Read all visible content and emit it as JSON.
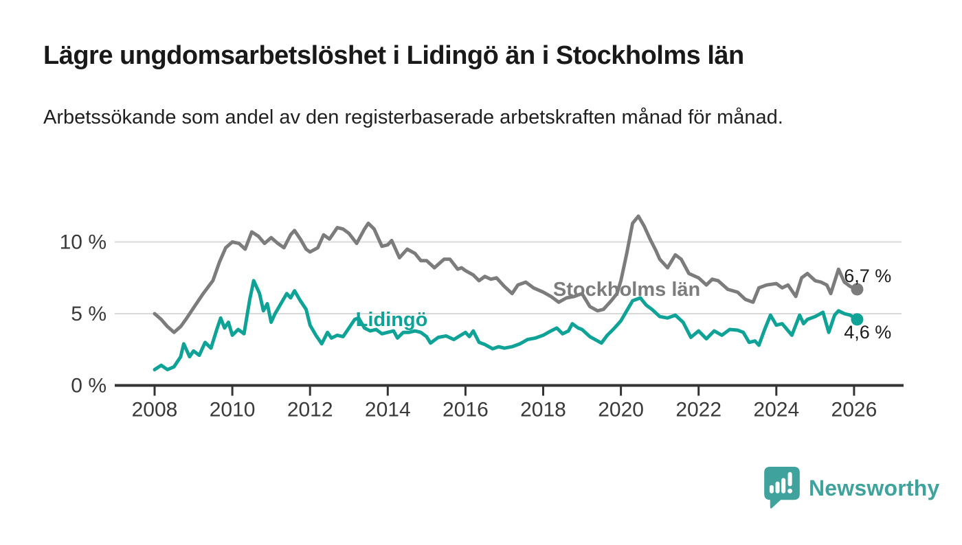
{
  "header": {
    "title": "Lägre ungdomsarbetslöshet i Lidingö än i Stockholms län",
    "subtitle": "Arbetssökande som andel av den registerbaserade arbetskraften månad för månad."
  },
  "footer": {
    "brand": "Newsworthy",
    "brand_color": "#3FA29C"
  },
  "colors": {
    "axis": "#333333",
    "gridline": "#d9d9d9",
    "tick_label": "#3a3a3a",
    "value_label": "#1b1b1b",
    "background": "#ffffff"
  },
  "chart_data": {
    "type": "line",
    "title": "Lägre ungdomsarbetslöshet i Lidingö än i Stockholms län",
    "subtitle": "Arbetssökande som andel av den registerbaserade arbetskraften månad för månad.",
    "xlabel": "",
    "ylabel": "",
    "unit": "%",
    "grid": "horizontal",
    "legend_position": "inline-labels",
    "xlim": [
      2007.0,
      2027.2
    ],
    "ylim": [
      0,
      12
    ],
    "y_ticks": [
      {
        "value": 0,
        "label": "0 %"
      },
      {
        "value": 5,
        "label": "5 %"
      },
      {
        "value": 10,
        "label": "10 %"
      }
    ],
    "x_ticks": [
      2008,
      2010,
      2012,
      2014,
      2016,
      2018,
      2020,
      2022,
      2024,
      2026
    ],
    "series": [
      {
        "name": "Stockholms län",
        "color": "#7C7C7C",
        "end_value_text": "6,7 %",
        "label": {
          "text": "Stockholms län",
          "x": 2020.15,
          "y": 6.72,
          "anchor": "middle"
        },
        "end_label": {
          "text": "6,7 %",
          "x": 2025.74,
          "y": 7.68,
          "anchor": "start"
        },
        "points": [
          [
            2008.0,
            5.0
          ],
          [
            2008.17,
            4.6
          ],
          [
            2008.33,
            4.1
          ],
          [
            2008.5,
            3.7
          ],
          [
            2008.67,
            4.1
          ],
          [
            2008.83,
            4.7
          ],
          [
            2009.0,
            5.4
          ],
          [
            2009.25,
            6.4
          ],
          [
            2009.5,
            7.3
          ],
          [
            2009.67,
            8.6
          ],
          [
            2009.83,
            9.6
          ],
          [
            2010.0,
            10.0
          ],
          [
            2010.17,
            9.9
          ],
          [
            2010.33,
            9.5
          ],
          [
            2010.5,
            10.7
          ],
          [
            2010.67,
            10.4
          ],
          [
            2010.83,
            9.9
          ],
          [
            2011.0,
            10.3
          ],
          [
            2011.17,
            9.9
          ],
          [
            2011.33,
            9.6
          ],
          [
            2011.5,
            10.5
          ],
          [
            2011.6,
            10.8
          ],
          [
            2011.75,
            10.2
          ],
          [
            2011.9,
            9.5
          ],
          [
            2012.0,
            9.3
          ],
          [
            2012.2,
            9.6
          ],
          [
            2012.35,
            10.5
          ],
          [
            2012.5,
            10.2
          ],
          [
            2012.7,
            11.0
          ],
          [
            2012.85,
            10.9
          ],
          [
            2013.0,
            10.6
          ],
          [
            2013.2,
            9.9
          ],
          [
            2013.4,
            10.9
          ],
          [
            2013.5,
            11.3
          ],
          [
            2013.65,
            10.9
          ],
          [
            2013.85,
            9.7
          ],
          [
            2014.0,
            9.8
          ],
          [
            2014.1,
            10.1
          ],
          [
            2014.3,
            8.9
          ],
          [
            2014.5,
            9.5
          ],
          [
            2014.7,
            9.2
          ],
          [
            2014.85,
            8.7
          ],
          [
            2015.0,
            8.7
          ],
          [
            2015.2,
            8.2
          ],
          [
            2015.45,
            8.8
          ],
          [
            2015.6,
            8.8
          ],
          [
            2015.8,
            8.1
          ],
          [
            2015.9,
            8.2
          ],
          [
            2016.0,
            8.0
          ],
          [
            2016.2,
            7.7
          ],
          [
            2016.35,
            7.3
          ],
          [
            2016.5,
            7.6
          ],
          [
            2016.65,
            7.4
          ],
          [
            2016.8,
            7.5
          ],
          [
            2017.0,
            6.9
          ],
          [
            2017.2,
            6.4
          ],
          [
            2017.35,
            7.0
          ],
          [
            2017.55,
            7.2
          ],
          [
            2017.75,
            6.8
          ],
          [
            2018.0,
            6.5
          ],
          [
            2018.2,
            6.2
          ],
          [
            2018.4,
            5.8
          ],
          [
            2018.6,
            6.1
          ],
          [
            2018.8,
            6.2
          ],
          [
            2019.0,
            6.4
          ],
          [
            2019.2,
            5.5
          ],
          [
            2019.4,
            5.2
          ],
          [
            2019.55,
            5.3
          ],
          [
            2019.75,
            5.9
          ],
          [
            2019.9,
            6.4
          ],
          [
            2020.0,
            7.3
          ],
          [
            2020.15,
            9.2
          ],
          [
            2020.3,
            11.3
          ],
          [
            2020.45,
            11.8
          ],
          [
            2020.6,
            11.1
          ],
          [
            2020.75,
            10.2
          ],
          [
            2020.9,
            9.4
          ],
          [
            2021.0,
            8.8
          ],
          [
            2021.2,
            8.2
          ],
          [
            2021.4,
            9.1
          ],
          [
            2021.55,
            8.8
          ],
          [
            2021.75,
            7.8
          ],
          [
            2022.0,
            7.5
          ],
          [
            2022.2,
            7.0
          ],
          [
            2022.35,
            7.4
          ],
          [
            2022.5,
            7.3
          ],
          [
            2022.75,
            6.7
          ],
          [
            2023.0,
            6.5
          ],
          [
            2023.2,
            6.0
          ],
          [
            2023.4,
            5.8
          ],
          [
            2023.55,
            6.8
          ],
          [
            2023.75,
            7.0
          ],
          [
            2024.0,
            7.1
          ],
          [
            2024.15,
            6.8
          ],
          [
            2024.3,
            7.0
          ],
          [
            2024.5,
            6.2
          ],
          [
            2024.65,
            7.5
          ],
          [
            2024.8,
            7.8
          ],
          [
            2025.0,
            7.3
          ],
          [
            2025.15,
            7.2
          ],
          [
            2025.3,
            7.0
          ],
          [
            2025.4,
            6.4
          ],
          [
            2025.6,
            8.1
          ],
          [
            2025.75,
            7.2
          ],
          [
            2025.9,
            6.9
          ],
          [
            2026.08,
            6.7
          ]
        ]
      },
      {
        "name": "Lidingö",
        "color": "#0FA297",
        "end_value_text": "4,6 %",
        "label": {
          "text": "Lidingö",
          "x": 2014.1,
          "y": 4.62,
          "anchor": "middle"
        },
        "end_label": {
          "text": "4,6 %",
          "x": 2025.74,
          "y": 3.76,
          "anchor": "start"
        },
        "points": [
          [
            2008.0,
            1.1
          ],
          [
            2008.17,
            1.4
          ],
          [
            2008.33,
            1.1
          ],
          [
            2008.5,
            1.3
          ],
          [
            2008.67,
            2.0
          ],
          [
            2008.75,
            2.9
          ],
          [
            2008.9,
            2.0
          ],
          [
            2009.0,
            2.4
          ],
          [
            2009.15,
            2.1
          ],
          [
            2009.3,
            3.0
          ],
          [
            2009.45,
            2.6
          ],
          [
            2009.6,
            3.9
          ],
          [
            2009.7,
            4.7
          ],
          [
            2009.8,
            4.0
          ],
          [
            2009.9,
            4.4
          ],
          [
            2010.0,
            3.5
          ],
          [
            2010.15,
            3.9
          ],
          [
            2010.3,
            3.6
          ],
          [
            2010.45,
            6.0
          ],
          [
            2010.55,
            7.3
          ],
          [
            2010.7,
            6.4
          ],
          [
            2010.8,
            5.2
          ],
          [
            2010.9,
            5.7
          ],
          [
            2011.0,
            4.4
          ],
          [
            2011.1,
            5.0
          ],
          [
            2011.25,
            5.7
          ],
          [
            2011.4,
            6.4
          ],
          [
            2011.5,
            6.1
          ],
          [
            2011.6,
            6.6
          ],
          [
            2011.75,
            5.9
          ],
          [
            2011.9,
            5.3
          ],
          [
            2012.0,
            4.2
          ],
          [
            2012.15,
            3.5
          ],
          [
            2012.3,
            2.9
          ],
          [
            2012.45,
            3.7
          ],
          [
            2012.55,
            3.3
          ],
          [
            2012.7,
            3.5
          ],
          [
            2012.85,
            3.4
          ],
          [
            2013.0,
            4.0
          ],
          [
            2013.15,
            4.6
          ],
          [
            2013.25,
            4.7
          ],
          [
            2013.4,
            4.0
          ],
          [
            2013.55,
            3.8
          ],
          [
            2013.7,
            3.9
          ],
          [
            2013.85,
            3.6
          ],
          [
            2014.0,
            3.7
          ],
          [
            2014.15,
            3.8
          ],
          [
            2014.25,
            3.3
          ],
          [
            2014.4,
            3.7
          ],
          [
            2014.55,
            3.7
          ],
          [
            2014.7,
            3.8
          ],
          [
            2014.85,
            3.7
          ],
          [
            2015.0,
            3.4
          ],
          [
            2015.1,
            2.95
          ],
          [
            2015.3,
            3.35
          ],
          [
            2015.5,
            3.45
          ],
          [
            2015.7,
            3.2
          ],
          [
            2015.85,
            3.45
          ],
          [
            2016.0,
            3.7
          ],
          [
            2016.1,
            3.4
          ],
          [
            2016.2,
            3.8
          ],
          [
            2016.35,
            3.0
          ],
          [
            2016.5,
            2.85
          ],
          [
            2016.7,
            2.55
          ],
          [
            2016.85,
            2.7
          ],
          [
            2017.0,
            2.6
          ],
          [
            2017.2,
            2.7
          ],
          [
            2017.4,
            2.9
          ],
          [
            2017.6,
            3.2
          ],
          [
            2017.8,
            3.3
          ],
          [
            2018.0,
            3.5
          ],
          [
            2018.2,
            3.8
          ],
          [
            2018.35,
            4.0
          ],
          [
            2018.5,
            3.6
          ],
          [
            2018.65,
            3.8
          ],
          [
            2018.75,
            4.3
          ],
          [
            2018.9,
            4.0
          ],
          [
            2019.0,
            3.9
          ],
          [
            2019.2,
            3.4
          ],
          [
            2019.4,
            3.1
          ],
          [
            2019.5,
            2.95
          ],
          [
            2019.65,
            3.5
          ],
          [
            2019.8,
            3.9
          ],
          [
            2020.0,
            4.5
          ],
          [
            2020.15,
            5.2
          ],
          [
            2020.3,
            5.9
          ],
          [
            2020.5,
            6.1
          ],
          [
            2020.65,
            5.6
          ],
          [
            2020.8,
            5.3
          ],
          [
            2021.0,
            4.8
          ],
          [
            2021.2,
            4.7
          ],
          [
            2021.4,
            4.9
          ],
          [
            2021.6,
            4.4
          ],
          [
            2021.8,
            3.35
          ],
          [
            2022.0,
            3.8
          ],
          [
            2022.2,
            3.25
          ],
          [
            2022.4,
            3.8
          ],
          [
            2022.6,
            3.5
          ],
          [
            2022.8,
            3.9
          ],
          [
            2023.0,
            3.85
          ],
          [
            2023.15,
            3.7
          ],
          [
            2023.3,
            3.0
          ],
          [
            2023.45,
            3.1
          ],
          [
            2023.55,
            2.8
          ],
          [
            2023.7,
            3.9
          ],
          [
            2023.85,
            4.9
          ],
          [
            2024.0,
            4.2
          ],
          [
            2024.15,
            4.3
          ],
          [
            2024.4,
            3.5
          ],
          [
            2024.6,
            4.9
          ],
          [
            2024.7,
            4.3
          ],
          [
            2024.8,
            4.6
          ],
          [
            2025.0,
            4.8
          ],
          [
            2025.2,
            5.1
          ],
          [
            2025.35,
            3.7
          ],
          [
            2025.5,
            4.9
          ],
          [
            2025.6,
            5.2
          ],
          [
            2025.75,
            5.0
          ],
          [
            2025.9,
            4.9
          ],
          [
            2026.08,
            4.6
          ]
        ]
      }
    ]
  }
}
